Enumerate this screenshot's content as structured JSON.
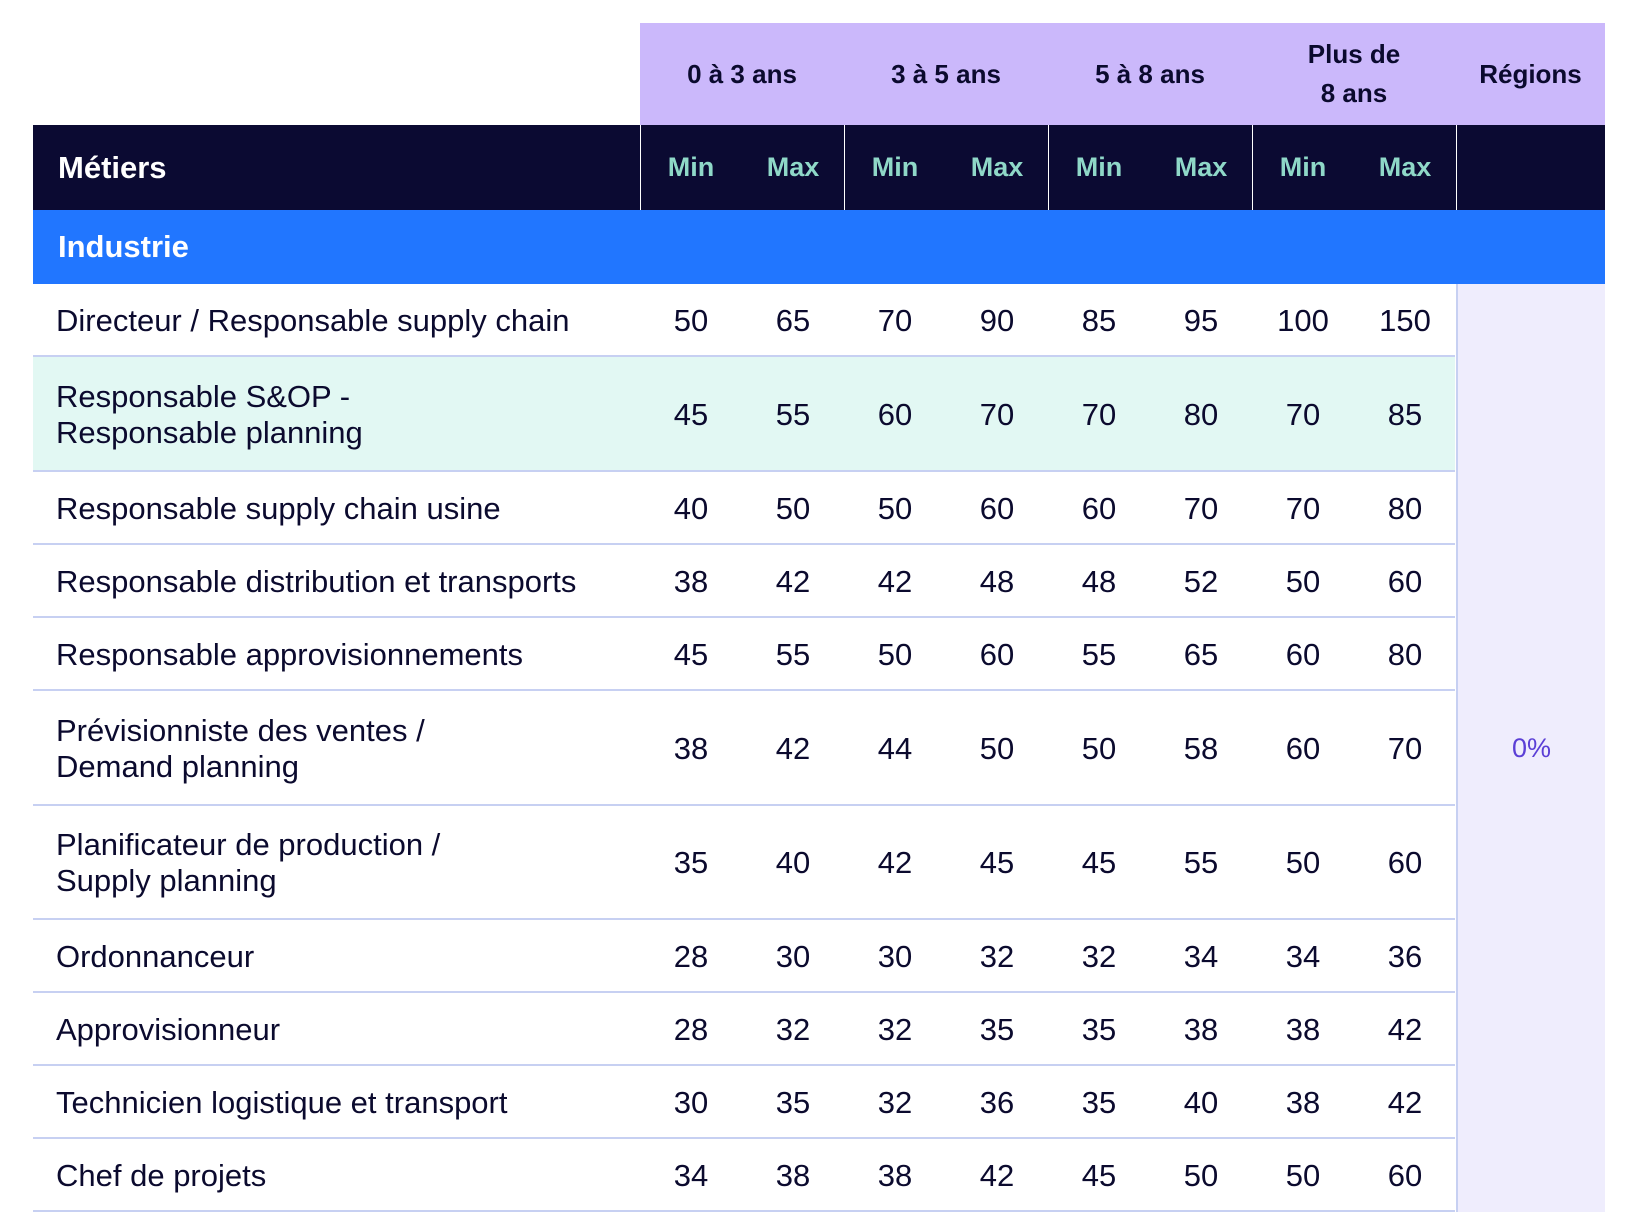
{
  "table": {
    "experience_headers": [
      "0 à 3 ans",
      "3 à 5 ans",
      "5 à 8 ans",
      "Plus de\n8 ans"
    ],
    "regions_header": "Régions",
    "jobs_header": "Métiers",
    "min_label": "Min",
    "max_label": "Max",
    "section": "Industrie",
    "regions_value": "0%",
    "rows": [
      {
        "label": "Directeur / Responsable supply chain",
        "values": [
          "50",
          "65",
          "70",
          "90",
          "85",
          "95",
          "100",
          "150"
        ]
      },
      {
        "label": "Responsable S&OP -\nResponsable planning",
        "values": [
          "45",
          "55",
          "60",
          "70",
          "70",
          "80",
          "70",
          "85"
        ],
        "highlight": true
      },
      {
        "label": "Responsable supply chain usine",
        "values": [
          "40",
          "50",
          "50",
          "60",
          "60",
          "70",
          "70",
          "80"
        ]
      },
      {
        "label": "Responsable distribution et transports",
        "values": [
          "38",
          "42",
          "42",
          "48",
          "48",
          "52",
          "50",
          "60"
        ]
      },
      {
        "label": "Responsable approvisionnements",
        "values": [
          "45",
          "55",
          "50",
          "60",
          "55",
          "65",
          "60",
          "80"
        ]
      },
      {
        "label": "Prévisionniste des ventes /\nDemand planning",
        "values": [
          "38",
          "42",
          "44",
          "50",
          "50",
          "58",
          "60",
          "70"
        ]
      },
      {
        "label": "Planificateur de production /\nSupply planning",
        "values": [
          "35",
          "40",
          "42",
          "45",
          "45",
          "55",
          "50",
          "60"
        ]
      },
      {
        "label": "Ordonnanceur",
        "values": [
          "28",
          "30",
          "30",
          "32",
          "32",
          "34",
          "34",
          "36"
        ]
      },
      {
        "label": "Approvisionneur",
        "values": [
          "28",
          "32",
          "32",
          "35",
          "35",
          "38",
          "38",
          "42"
        ]
      },
      {
        "label": "Technicien logistique et transport",
        "values": [
          "30",
          "35",
          "32",
          "36",
          "35",
          "40",
          "38",
          "42"
        ]
      },
      {
        "label": "Chef de projets",
        "values": [
          "34",
          "38",
          "38",
          "42",
          "45",
          "50",
          "50",
          "60"
        ]
      }
    ]
  }
}
